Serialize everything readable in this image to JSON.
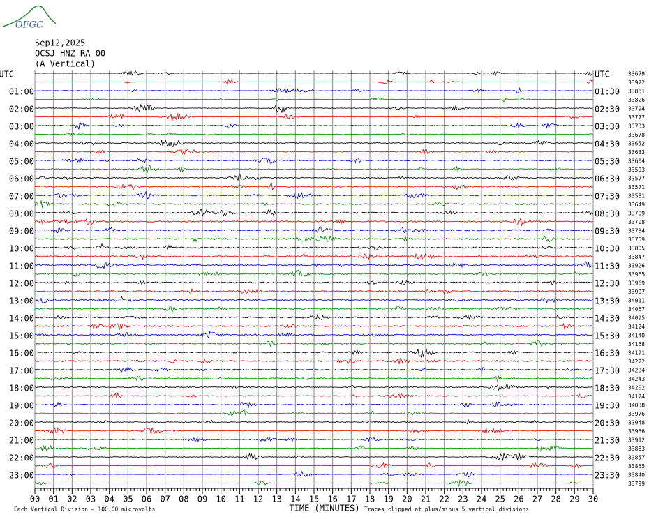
{
  "header": {
    "logo": "OFGC",
    "date": "Sep12,2025",
    "station": "OCSJ HNZ RA 00",
    "component": "(A Vertical)"
  },
  "left_labels": [
    "UTC",
    "01:00",
    "02:00",
    "03:00",
    "04:00",
    "05:00",
    "06:00",
    "07:00",
    "08:00",
    "09:00",
    "10:00",
    "11:00",
    "12:00",
    "13:00",
    "14:00",
    "15:00",
    "16:00",
    "17:00",
    "18:00",
    "19:00",
    "20:00",
    "21:00",
    "22:00",
    "23:00"
  ],
  "right_labels": [
    "UTC",
    "01:30",
    "02:30",
    "03:30",
    "04:30",
    "05:30",
    "06:30",
    "07:30",
    "08:30",
    "09:30",
    "10:30",
    "11:30",
    "12:30",
    "13:30",
    "14:30",
    "15:30",
    "16:30",
    "17:30",
    "18:30",
    "19:30",
    "20:30",
    "21:30",
    "22:30",
    "23:30"
  ],
  "trace_values": [
    33679,
    33972,
    33881,
    33826,
    33794,
    33777,
    33733,
    33678,
    33652,
    33633,
    33604,
    33593,
    33577,
    33571,
    33581,
    33649,
    33709,
    33708,
    33734,
    33759,
    33805,
    33847,
    33926,
    33965,
    33969,
    33997,
    34011,
    34067,
    34095,
    34124,
    34140,
    34168,
    34191,
    34222,
    34234,
    34243,
    34202,
    34124,
    34038,
    33976,
    33948,
    33956,
    33912,
    33883,
    33857,
    33855,
    33840,
    33799
  ],
  "x_labels": [
    "00",
    "01",
    "02",
    "03",
    "04",
    "05",
    "06",
    "07",
    "08",
    "09",
    "10",
    "11",
    "12",
    "13",
    "14",
    "15",
    "16",
    "17",
    "18",
    "19",
    "20",
    "21",
    "22",
    "23",
    "24",
    "25",
    "26",
    "27",
    "28",
    "29",
    "30"
  ],
  "footer": {
    "scale": "Each Vertical Division =  100.00 microvolts",
    "axis_title": "TIME (MINUTES)",
    "clip_note": "Traces clipped at plus/minus 5 vertical divisions"
  }
}
